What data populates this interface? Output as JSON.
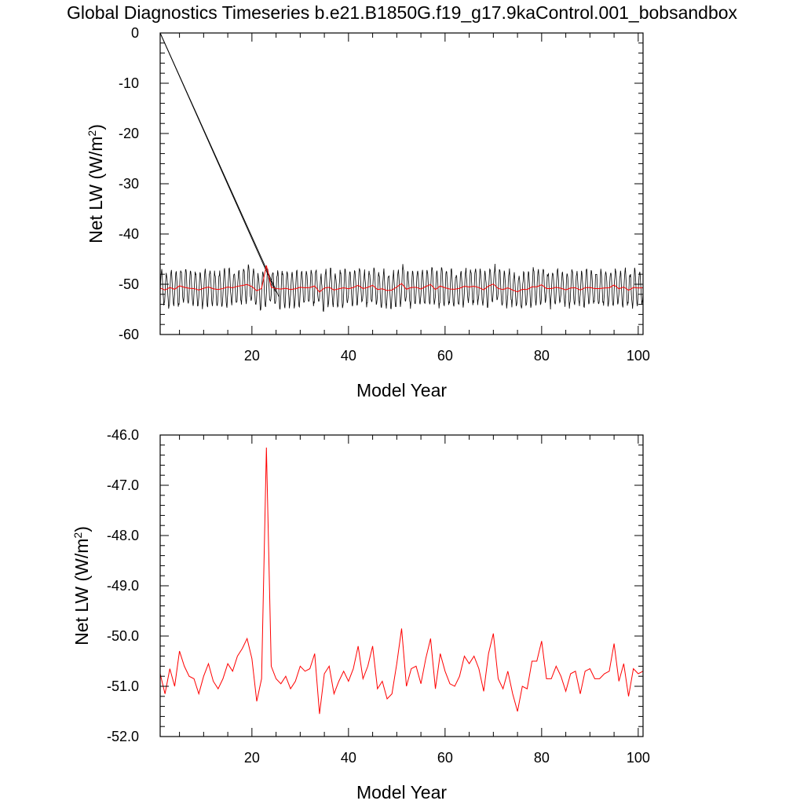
{
  "title": "Global Diagnostics Timeseries b.e21.B1850G.f19_g17.9kaControl.001_bobsandbox",
  "chart_data": [
    {
      "type": "line",
      "xlabel": "Model Year",
      "ylabel": "Net LW (W/m",
      "ylabel_sup": "2",
      "ylabel_close": ")",
      "xlim": [
        1,
        101
      ],
      "ylim": [
        -60,
        0
      ],
      "xticks": [
        20,
        40,
        60,
        80,
        100
      ],
      "xtick_labels": [
        "20",
        "40",
        "60",
        "80",
        "100"
      ],
      "yticks": [
        0,
        -10,
        -20,
        -30,
        -40,
        -50,
        -60
      ],
      "ytick_labels": [
        "0",
        "-10",
        "-20",
        "-30",
        "-40",
        "-50",
        "-60"
      ],
      "series": [
        {
          "kind": "monthly",
          "color": "#000000",
          "mean": -50.5,
          "seasonal_amplitude": 3.4,
          "period_years": 1,
          "spurious_lines": [
            {
              "x": [
                1.0,
                25.6
              ],
              "y": [
                0,
                -52.5
              ]
            },
            {
              "x": [
                1.0,
                24.9
              ],
              "y": [
                0,
                -51.5
              ]
            }
          ]
        },
        {
          "kind": "annual",
          "color": "#ff0000",
          "x": [
            1,
            2,
            3,
            4,
            5,
            6,
            7,
            8,
            9,
            10,
            11,
            12,
            13,
            14,
            15,
            16,
            17,
            18,
            19,
            20,
            21,
            22,
            23,
            24,
            25,
            26,
            27,
            28,
            29,
            30,
            31,
            32,
            33,
            34,
            35,
            36,
            37,
            38,
            39,
            40,
            41,
            42,
            43,
            44,
            45,
            46,
            47,
            48,
            49,
            50,
            51,
            52,
            53,
            54,
            55,
            56,
            57,
            58,
            59,
            60,
            61,
            62,
            63,
            64,
            65,
            66,
            67,
            68,
            69,
            70,
            71,
            72,
            73,
            74,
            75,
            76,
            77,
            78,
            79,
            80,
            81,
            82,
            83,
            84,
            85,
            86,
            87,
            88,
            89,
            90,
            91,
            92,
            93,
            94,
            95,
            96,
            97,
            98,
            99,
            100,
            101
          ],
          "values": [
            -50.75,
            -51.15,
            -50.65,
            -51.0,
            -50.3,
            -50.6,
            -50.8,
            -50.85,
            -51.15,
            -50.8,
            -50.55,
            -50.9,
            -51.05,
            -50.85,
            -50.55,
            -50.7,
            -50.4,
            -50.25,
            -50.05,
            -50.45,
            -51.3,
            -50.85,
            -46.25,
            -50.6,
            -50.85,
            -50.95,
            -50.8,
            -51.05,
            -50.9,
            -50.6,
            -50.7,
            -50.65,
            -50.35,
            -51.55,
            -50.75,
            -50.6,
            -51.15,
            -50.9,
            -50.7,
            -50.9,
            -50.65,
            -50.2,
            -50.85,
            -50.6,
            -50.2,
            -51.05,
            -50.9,
            -51.25,
            -51.15,
            -50.55,
            -49.85,
            -51.0,
            -50.65,
            -50.6,
            -50.95,
            -50.45,
            -50.05,
            -51.05,
            -50.35,
            -50.7,
            -50.95,
            -51.0,
            -50.8,
            -50.4,
            -50.55,
            -50.4,
            -50.65,
            -51.1,
            -50.35,
            -49.95,
            -50.85,
            -51.05,
            -50.7,
            -51.15,
            -51.5,
            -51.0,
            -51.05,
            -50.5,
            -50.5,
            -50.1,
            -50.85,
            -50.85,
            -50.6,
            -50.8,
            -51.1,
            -50.75,
            -50.7,
            -51.15,
            -50.7,
            -50.65,
            -50.85,
            -50.85,
            -50.75,
            -50.7,
            -50.15,
            -50.9,
            -50.55,
            -51.2,
            -50.65,
            -50.75,
            -50.7
          ]
        }
      ]
    },
    {
      "type": "line",
      "xlabel": "Model Year",
      "ylabel": "Net LW (W/m",
      "ylabel_sup": "2",
      "ylabel_close": ")",
      "xlim": [
        1,
        101
      ],
      "ylim": [
        -52,
        -46
      ],
      "xticks": [
        20,
        40,
        60,
        80,
        100
      ],
      "xtick_labels": [
        "20",
        "40",
        "60",
        "80",
        "100"
      ],
      "yticks": [
        -46,
        -47,
        -48,
        -49,
        -50,
        -51,
        -52
      ],
      "ytick_labels": [
        "-46.0",
        "-47.0",
        "-48.0",
        "-49.0",
        "-50.0",
        "-51.0",
        "-52.0"
      ],
      "series": [
        {
          "kind": "annual",
          "color": "#ff0000",
          "ref": "top.annual"
        }
      ]
    }
  ]
}
